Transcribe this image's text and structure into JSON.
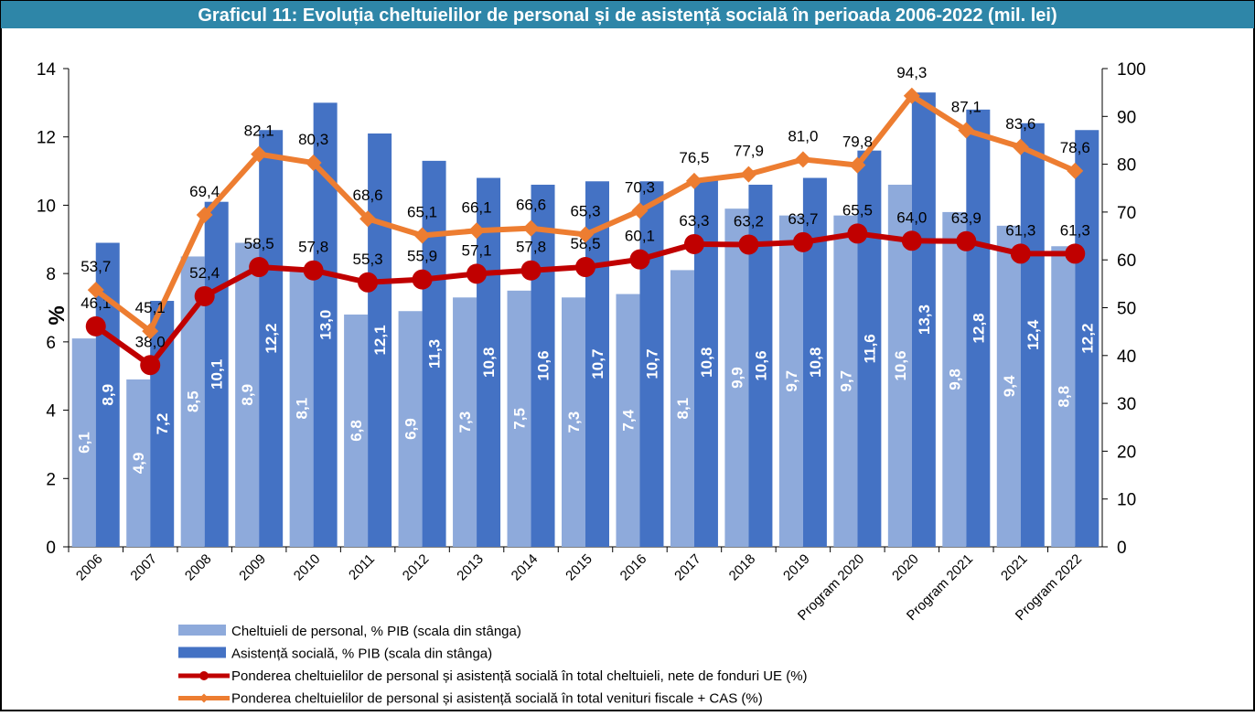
{
  "chart_data": {
    "type": "bar",
    "title": "Graficul 11: Evoluția cheltuielilor de personal și de asistență socială în perioada 2006-2022 (mil. lei)",
    "y_label": "%",
    "categories": [
      "2006",
      "2007",
      "2008",
      "2009",
      "2010",
      "2011",
      "2012",
      "2013",
      "2014",
      "2015",
      "2016",
      "2017",
      "2018",
      "2019",
      "Program 2020",
      "2020",
      "Program 2021",
      "2021",
      "Program 2022"
    ],
    "ylim": [
      0,
      14
    ],
    "yticks": [
      0,
      2,
      4,
      6,
      8,
      10,
      12,
      14
    ],
    "y2lim": [
      0,
      100
    ],
    "y2ticks": [
      0,
      10,
      20,
      30,
      40,
      50,
      60,
      70,
      80,
      90,
      100
    ],
    "grid": false,
    "legend": "bottom-left",
    "series": [
      {
        "name": "Cheltuieli de personal, % PIB (scala din stânga)",
        "type": "bar",
        "color": "#8eaadb",
        "values": [
          6.1,
          4.9,
          8.5,
          8.9,
          8.1,
          6.8,
          6.9,
          7.3,
          7.5,
          7.3,
          7.4,
          8.1,
          9.9,
          9.7,
          9.7,
          10.6,
          9.8,
          9.4,
          8.8
        ],
        "value_labels": [
          "6,1",
          "4,9",
          "8,5",
          "8,9",
          "8,1",
          "6,8",
          "6,9",
          "7,3",
          "7,5",
          "7,3",
          "7,4",
          "8,1",
          "9,9",
          "9,7",
          "9,7",
          "10,6",
          "9,8",
          "9,4",
          "8,8"
        ]
      },
      {
        "name": "Asistență socială, % PIB (scala din stânga)",
        "type": "bar",
        "color": "#4472c4",
        "values": [
          8.9,
          7.2,
          10.1,
          12.2,
          13.0,
          12.1,
          11.3,
          10.8,
          10.6,
          10.7,
          10.7,
          10.8,
          10.6,
          10.8,
          11.6,
          13.3,
          12.8,
          12.4,
          12.2
        ],
        "value_labels": [
          "8,9",
          "7,2",
          "10,1",
          "12,2",
          "13,0",
          "12,1",
          "11,3",
          "10,8",
          "10,6",
          "10,7",
          "10,7",
          "10,8",
          "10,6",
          "10,8",
          "11,6",
          "13,3",
          "12,8",
          "12,4",
          "12,2"
        ]
      },
      {
        "name": "Ponderea cheltuielilor de personal și asistență socială în total cheltuieli, nete de fonduri UE (%)",
        "type": "line",
        "axis": "y2",
        "color": "#c00000",
        "values": [
          46.1,
          38.0,
          52.4,
          58.5,
          57.8,
          55.3,
          55.9,
          57.1,
          57.8,
          58.5,
          60.1,
          63.3,
          63.2,
          63.7,
          65.5,
          64.0,
          63.9,
          61.3,
          61.3
        ],
        "value_labels": [
          "46,1",
          "38,0",
          "52,4",
          "58,5",
          "57,8",
          "55,3",
          "55,9",
          "57,1",
          "57,8",
          "58,5",
          "60,1",
          "63,3",
          "63,2",
          "63,7",
          "65,5",
          "64,0",
          "63,9",
          "61,3",
          "61,3"
        ]
      },
      {
        "name": "Ponderea cheltuielilor de personal și asistență socială în total venituri fiscale + CAS (%)",
        "type": "line",
        "axis": "y2",
        "color": "#ed7d31",
        "values": [
          53.7,
          45.1,
          69.4,
          82.1,
          80.3,
          68.6,
          65.1,
          66.1,
          66.6,
          65.3,
          70.3,
          76.5,
          77.9,
          81.0,
          79.8,
          94.3,
          87.1,
          83.6,
          78.6
        ],
        "value_labels": [
          "53,7",
          "45,1",
          "69,4",
          "82,1",
          "80,3",
          "68,6",
          "65,1",
          "66,1",
          "66,6",
          "65,3",
          "70,3",
          "76,5",
          "77,9",
          "81,0",
          "79,8",
          "94,3",
          "87,1",
          "83,6",
          "78,6"
        ]
      }
    ]
  }
}
